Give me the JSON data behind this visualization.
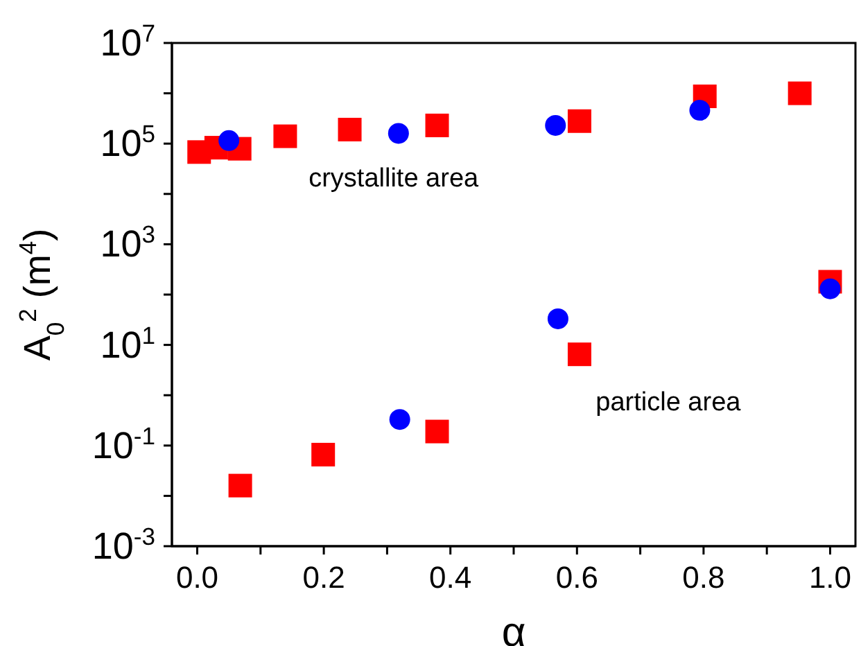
{
  "chart_data": {
    "type": "scatter",
    "xlabel": "α",
    "ylabel": "A$_{0}$$^{2}$ (m$^{4}$)",
    "log": "y",
    "grid": false,
    "legend": false,
    "xlim": [
      -0.04,
      1.04
    ],
    "xticks": [
      {
        "value": 0,
        "label": "0.0"
      },
      {
        "value": 0.1,
        "label": null
      },
      {
        "value": 0.2,
        "label": "0.2"
      },
      {
        "value": 0.3,
        "label": null
      },
      {
        "value": 0.4,
        "label": "0.4"
      },
      {
        "value": 0.5,
        "label": null
      },
      {
        "value": 0.6,
        "label": "0.6"
      },
      {
        "value": 0.7,
        "label": null
      },
      {
        "value": 0.8,
        "label": "0.8"
      },
      {
        "value": 0.9,
        "label": null
      },
      {
        "value": 1,
        "label": "1.0"
      }
    ],
    "ylim": [
      0.001,
      10000000
    ],
    "yticks": [
      {
        "value": 0.001,
        "label": "10$^{-3}$"
      },
      {
        "value": 0.01,
        "label": null
      },
      {
        "value": 0.1,
        "label": "10$^{-1}$"
      },
      {
        "value": 1,
        "label": null
      },
      {
        "value": 10,
        "label": "10$^{1}$"
      },
      {
        "value": 100,
        "label": null
      },
      {
        "value": 1000,
        "label": "10$^{3}$"
      },
      {
        "value": 10000,
        "label": null
      },
      {
        "value": 100000,
        "label": "10$^{5}$"
      },
      {
        "value": 1000000,
        "label": null
      },
      {
        "value": 10000000,
        "label": "10$^{7}$"
      }
    ],
    "annotations": [
      "crystallite area",
      "particle area"
    ],
    "series": [
      {
        "color": "#ff0000",
        "marker": "square",
        "x": [
          0.003,
          0.03,
          0.067,
          0.139,
          0.241,
          0.379,
          0.604,
          0.802,
          0.952
        ],
        "values": [
          68000,
          83000,
          79000,
          140000,
          190000,
          230000,
          280000,
          870000,
          1000000
        ]
      },
      {
        "color": "#0000ff",
        "marker": "circle",
        "x": [
          0.05,
          0.318,
          0.566,
          0.794
        ],
        "values": [
          115000,
          160000,
          230000,
          460000
        ]
      },
      {
        "color": "#ff0000",
        "marker": "square",
        "x": [
          0.068,
          0.199,
          0.379,
          0.604,
          1.0
        ],
        "values": [
          0.016,
          0.066,
          0.19,
          6.5,
          180
        ]
      },
      {
        "color": "#0000ff",
        "marker": "circle",
        "x": [
          0.32,
          0.57,
          1.0
        ],
        "values": [
          0.33,
          33,
          130
        ]
      }
    ]
  }
}
